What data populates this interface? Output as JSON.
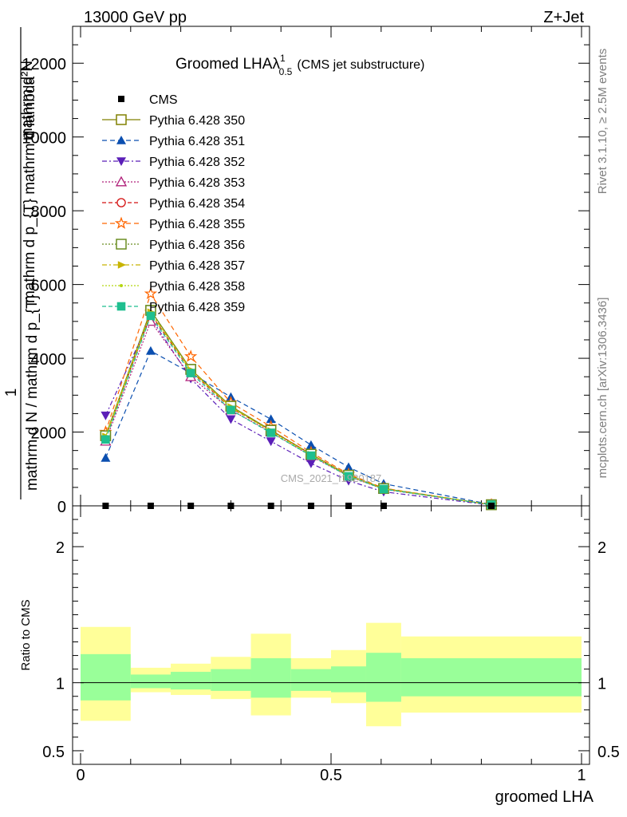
{
  "header": {
    "energy_label": "13000 GeV pp",
    "process_label": "Z+Jet"
  },
  "side_labels": {
    "rivet": "Rivet 3.1.10, ≥ 2.5M events",
    "mcplots": "mcplots.cern.ch [arXiv:1306.3436]"
  },
  "chart_data": [
    {
      "type": "line",
      "title_main": "Groomed LHA",
      "title_lambda": "λ",
      "title_sup": "1",
      "title_sub": "0.5",
      "title_note": "(CMS jet substructure)",
      "ylabel_top": "mathrm d²N",
      "ylabel_top2": "mathrm d p_{T} mathrm d lambda",
      "ylabel_num": "1",
      "ylabel_bottom": "mathrm d N / mathrm d p_{T}",
      "watermark": "CMS_2021_I1920187",
      "xlim": [
        0,
        1
      ],
      "ylim": [
        0,
        13000
      ],
      "yticks": [
        {
          "value": 2000,
          "label": "2000"
        },
        {
          "value": 4000,
          "label": "4000"
        },
        {
          "value": 6000,
          "label": "6000"
        },
        {
          "value": 8000,
          "label": "8000"
        },
        {
          "value": 10000,
          "label": "10000"
        },
        {
          "value": 12000,
          "label": "12000"
        },
        {
          "value": 0,
          "label": "0"
        }
      ],
      "x": [
        0.05,
        0.14,
        0.22,
        0.3,
        0.38,
        0.46,
        0.535,
        0.605,
        0.82
      ],
      "data": {
        "name": "CMS",
        "values": [
          0,
          0,
          0,
          0,
          0,
          0,
          0,
          0,
          0
        ]
      },
      "series": [
        {
          "name": "Pythia 6.428 350",
          "color": "#808000",
          "dash": "",
          "marker": "square-open",
          "values": [
            1900,
            5300,
            3700,
            2700,
            2050,
            1400,
            830,
            470,
            30
          ]
        },
        {
          "name": "Pythia 6.428 351",
          "color": "#0b4fb0",
          "dash": "6,4",
          "marker": "triangle-up-filled",
          "values": [
            1300,
            4200,
            3600,
            2950,
            2350,
            1650,
            1050,
            600,
            40
          ]
        },
        {
          "name": "Pythia 6.428 352",
          "color": "#5b1fb8",
          "dash": "6,3,2,3",
          "marker": "triangle-down-filled",
          "values": [
            2450,
            5100,
            3450,
            2350,
            1750,
            1150,
            680,
            380,
            20
          ]
        },
        {
          "name": "Pythia 6.428 353",
          "color": "#b0207a",
          "dash": "2,2",
          "marker": "triangle-up-open",
          "values": [
            1750,
            5000,
            3500,
            2600,
            2000,
            1350,
            800,
            450,
            30
          ]
        },
        {
          "name": "Pythia 6.428 354",
          "color": "#d41010",
          "dash": "5,3",
          "marker": "circle-open",
          "values": [
            1850,
            5200,
            3650,
            2650,
            2050,
            1400,
            820,
            460,
            30
          ]
        },
        {
          "name": "Pythia 6.428 355",
          "color": "#ff6600",
          "dash": "6,4",
          "marker": "star-open",
          "values": [
            2000,
            5750,
            4050,
            2800,
            2150,
            1450,
            860,
            480,
            30
          ]
        },
        {
          "name": "Pythia 6.428 356",
          "color": "#6b8e23",
          "dash": "2,2",
          "marker": "square-open",
          "values": [
            1900,
            5300,
            3700,
            2700,
            2050,
            1400,
            830,
            470,
            30
          ]
        },
        {
          "name": "Pythia 6.428 357",
          "color": "#c8b400",
          "dash": "6,3,2,3",
          "marker": "triangle-right-filled",
          "values": [
            1880,
            5250,
            3680,
            2680,
            2030,
            1390,
            820,
            465,
            30
          ]
        },
        {
          "name": "Pythia 6.428 358",
          "color": "#b5d610",
          "dash": "2,2",
          "marker": "dot",
          "values": [
            1870,
            5230,
            3660,
            2670,
            2020,
            1380,
            815,
            460,
            30
          ]
        },
        {
          "name": "Pythia 6.428 359",
          "color": "#1fbf8f",
          "dash": "5,3",
          "marker": "square-filled",
          "values": [
            1800,
            5150,
            3600,
            2600,
            1980,
            1360,
            800,
            455,
            30
          ]
        }
      ]
    },
    {
      "type": "area",
      "ylabel": "Ratio to CMS",
      "xlabel": "groomed LHA",
      "xlim": [
        0,
        1
      ],
      "ylim": [
        0.4,
        2.3
      ],
      "xticks": [
        {
          "value": 0,
          "label": "0"
        },
        {
          "value": 0.5,
          "label": "0.5"
        },
        {
          "value": 1,
          "label": "1"
        }
      ],
      "yticks": [
        {
          "value": 0.5,
          "label": "0.5"
        },
        {
          "value": 1,
          "label": "1"
        },
        {
          "value": 2,
          "label": "2"
        }
      ],
      "reference": 1,
      "bins": [
        {
          "x0": 0.0,
          "x1": 0.1,
          "inner": [
            0.87,
            1.21
          ],
          "outer": [
            0.72,
            1.41
          ]
        },
        {
          "x0": 0.1,
          "x1": 0.18,
          "inner": [
            0.96,
            1.06
          ],
          "outer": [
            0.93,
            1.11
          ]
        },
        {
          "x0": 0.18,
          "x1": 0.26,
          "inner": [
            0.95,
            1.08
          ],
          "outer": [
            0.91,
            1.14
          ]
        },
        {
          "x0": 0.26,
          "x1": 0.34,
          "inner": [
            0.94,
            1.1
          ],
          "outer": [
            0.88,
            1.19
          ]
        },
        {
          "x0": 0.34,
          "x1": 0.42,
          "inner": [
            0.89,
            1.18
          ],
          "outer": [
            0.76,
            1.36
          ]
        },
        {
          "x0": 0.42,
          "x1": 0.5,
          "inner": [
            0.94,
            1.1
          ],
          "outer": [
            0.89,
            1.18
          ]
        },
        {
          "x0": 0.5,
          "x1": 0.57,
          "inner": [
            0.93,
            1.12
          ],
          "outer": [
            0.85,
            1.24
          ]
        },
        {
          "x0": 0.57,
          "x1": 0.64,
          "inner": [
            0.86,
            1.22
          ],
          "outer": [
            0.68,
            1.44
          ]
        },
        {
          "x0": 0.64,
          "x1": 1.0,
          "inner": [
            0.9,
            1.18
          ],
          "outer": [
            0.78,
            1.34
          ]
        }
      ],
      "inner_color": "#99ff99",
      "outer_color": "#ffff99"
    }
  ]
}
